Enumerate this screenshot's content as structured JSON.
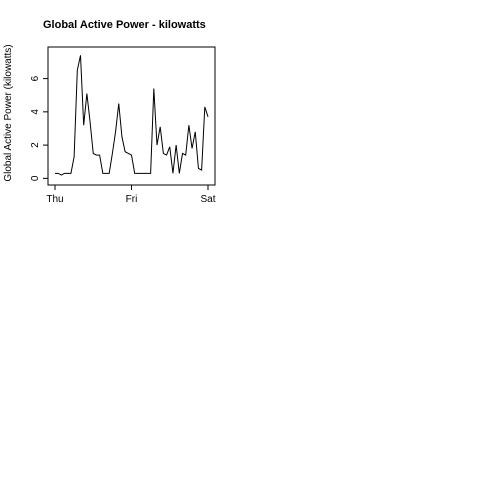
{
  "chart_data": {
    "type": "line",
    "title": "Global Active Power - kilowatts",
    "y_label": "Global Active Power (kilowatts)",
    "categories": [
      "Thu",
      null,
      null,
      null,
      null,
      null,
      null,
      null,
      null,
      null,
      null,
      null,
      null,
      null,
      null,
      null,
      null,
      null,
      null,
      null,
      null,
      null,
      null,
      null,
      "Fri",
      null,
      null,
      null,
      null,
      null,
      null,
      null,
      null,
      null,
      null,
      null,
      null,
      null,
      null,
      null,
      null,
      null,
      null,
      null,
      null,
      null,
      null,
      null,
      "Sat"
    ],
    "series": [
      {
        "name": "Global Active Power",
        "color": "#000000",
        "values": [
          0.3,
          0.3,
          0.2,
          0.3,
          0.3,
          0.3,
          1.3,
          6.5,
          7.4,
          3.2,
          5.1,
          3.4,
          1.5,
          1.4,
          1.4,
          0.3,
          0.3,
          0.3,
          1.5,
          2.8,
          4.5,
          2.5,
          1.6,
          1.5,
          1.4,
          0.3,
          0.3,
          0.3,
          0.3,
          0.3,
          0.3,
          5.4,
          2.0,
          3.1,
          1.5,
          1.4,
          1.9,
          0.3,
          2.0,
          0.3,
          1.5,
          1.4,
          3.2,
          1.8,
          2.8,
          0.6,
          0.5,
          4.3,
          3.7
        ]
      }
    ],
    "ylim": [
      -0.4,
      7.9
    ],
    "yticks": [
      0,
      2,
      4,
      6
    ]
  }
}
